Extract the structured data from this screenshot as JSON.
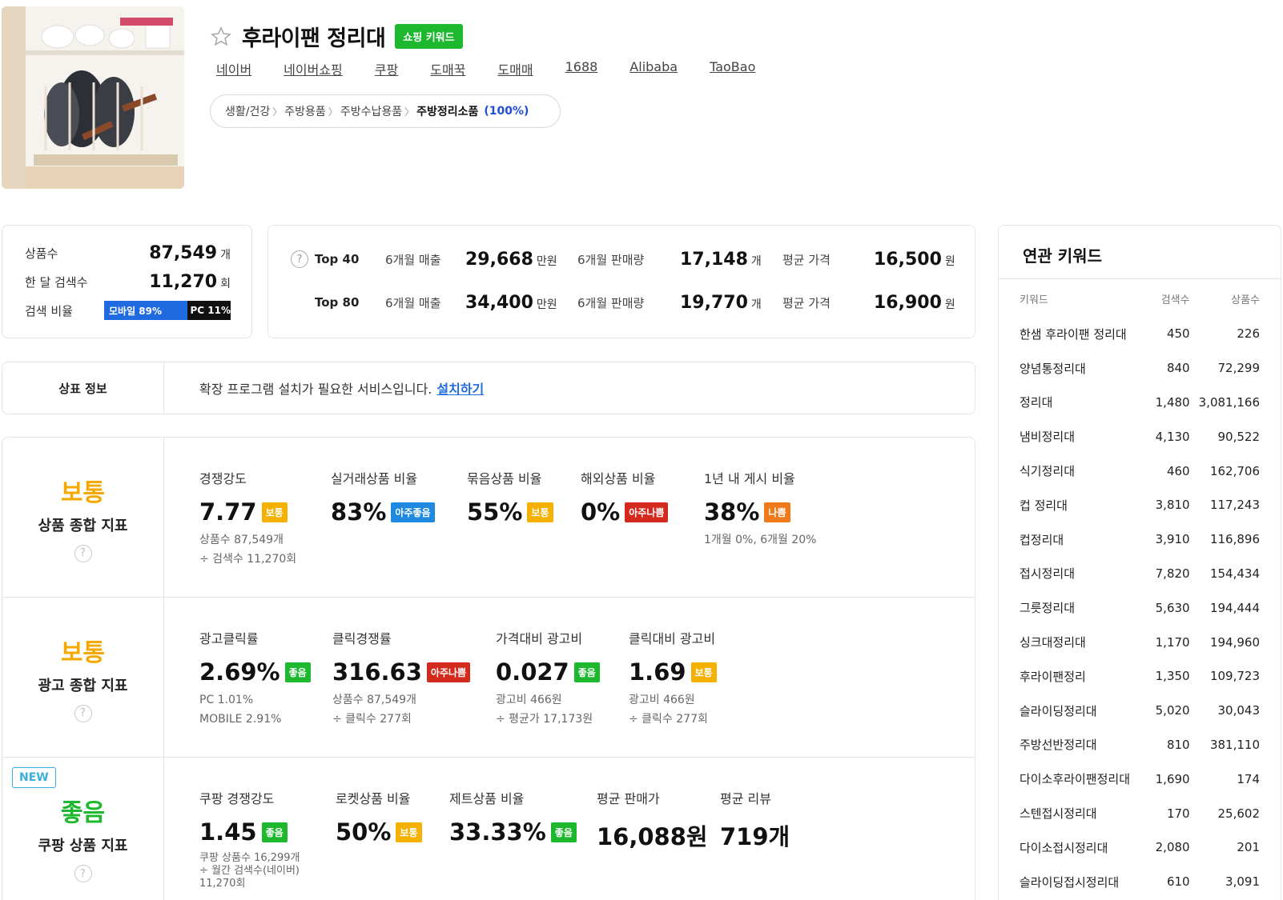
{
  "header": {
    "title": "후라이팬 정리대",
    "badge": "쇼핑 키워드",
    "links": [
      "네이버",
      "네이버쇼핑",
      "쿠팡",
      "도매꾹",
      "도매매",
      "1688",
      "Alibaba",
      "TaoBao"
    ],
    "breadcrumb": [
      "생활/건강",
      "주방용품",
      "주방수납용품",
      "주방정리소품"
    ],
    "category_percent": "(100%)"
  },
  "summary": {
    "product_count_label": "상품수",
    "product_count": "87,549",
    "product_count_unit": "개",
    "monthly_search_label": "한 달 검색수",
    "monthly_search": "11,270",
    "monthly_search_unit": "회",
    "search_ratio_label": "검색 비율",
    "mobile_label": "모바일 89%",
    "pc_label": "PC 11%",
    "mobile_fraction": 0.89
  },
  "top_stats": {
    "rows": [
      {
        "label": "Top 40",
        "sales_label": "6개월 매출",
        "sales": "29,668",
        "sales_unit": "만원",
        "qty_label": "6개월 판매량",
        "qty": "17,148",
        "qty_unit": "개",
        "price_label": "평균 가격",
        "price": "16,500",
        "price_unit": "원"
      },
      {
        "label": "Top 80",
        "sales_label": "6개월 매출",
        "sales": "34,400",
        "sales_unit": "만원",
        "qty_label": "6개월 판매량",
        "qty": "19,770",
        "qty_unit": "개",
        "price_label": "평균 가격",
        "price": "16,900",
        "price_unit": "원"
      }
    ]
  },
  "trademark": {
    "label": "상표 정보",
    "message": "확장 프로그램 설치가 필요한 서비스입니다.",
    "link": "설치하기"
  },
  "metrics": {
    "product": {
      "grade": "보통",
      "name": "상품 종합 지표",
      "items": [
        {
          "title": "경쟁강도",
          "value": "7.77",
          "tag": "보통",
          "sub1": "상품수 87,549개",
          "sub2": "÷ 검색수 11,270회"
        },
        {
          "title": "실거래상품 비율",
          "value": "83%",
          "tag": "아주좋음"
        },
        {
          "title": "묶음상품 비율",
          "value": "55%",
          "tag": "보통"
        },
        {
          "title": "해외상품 비율",
          "value": "0%",
          "tag": "아주나쁨"
        },
        {
          "title": "1년 내 게시 비율",
          "value": "38%",
          "tag": "나쁨",
          "sub1": "1개월 0%, 6개월 20%"
        }
      ]
    },
    "ad": {
      "grade": "보통",
      "name": "광고 종합 지표",
      "items": [
        {
          "title": "광고클릭률",
          "value": "2.69%",
          "tag": "좋음",
          "sub1": "PC 1.01%",
          "sub2": "MOBILE 2.91%"
        },
        {
          "title": "클릭경쟁률",
          "value": "316.63",
          "tag": "아주나쁨",
          "sub1": "상품수 87,549개",
          "sub2": "÷ 클릭수 277회"
        },
        {
          "title": "가격대비 광고비",
          "value": "0.027",
          "tag": "좋음",
          "sub1": "광고비 466원",
          "sub2": "÷ 평균가 17,173원"
        },
        {
          "title": "클릭대비 광고비",
          "value": "1.69",
          "tag": "보통",
          "sub1": "광고비 466원",
          "sub2": "÷ 클릭수 277회"
        }
      ]
    },
    "coupang": {
      "new_badge": "NEW",
      "grade": "좋음",
      "name": "쿠팡 상품 지표",
      "items": [
        {
          "title": "쿠팡 경쟁강도",
          "value": "1.45",
          "tag": "좋음",
          "sub1": "쿠팡 상품수 16,299개",
          "sub2": "÷ 월간 검색수(네이버)",
          "sub3": "11,270회"
        },
        {
          "title": "로켓상품 비율",
          "value": "50%",
          "tag": "보통"
        },
        {
          "title": "제트상품 비율",
          "value": "33.33%",
          "tag": "좋음"
        },
        {
          "title": "평균 판매가",
          "value": "16,088원"
        },
        {
          "title": "평균 리뷰",
          "value": "719개"
        }
      ]
    }
  },
  "related": {
    "title": "연관 키워드",
    "col_keyword": "키워드",
    "col_search": "검색수",
    "col_products": "상품수",
    "rows": [
      {
        "keyword": "한샘 후라이팬 정리대",
        "search": "450",
        "products": "226"
      },
      {
        "keyword": "양념통정리대",
        "search": "840",
        "products": "72,299"
      },
      {
        "keyword": "정리대",
        "search": "1,480",
        "products": "3,081,166"
      },
      {
        "keyword": "냄비정리대",
        "search": "4,130",
        "products": "90,522"
      },
      {
        "keyword": "식기정리대",
        "search": "460",
        "products": "162,706"
      },
      {
        "keyword": "컵 정리대",
        "search": "3,810",
        "products": "117,243"
      },
      {
        "keyword": "컵정리대",
        "search": "3,910",
        "products": "116,896"
      },
      {
        "keyword": "접시정리대",
        "search": "7,820",
        "products": "154,434"
      },
      {
        "keyword": "그릇정리대",
        "search": "5,630",
        "products": "194,444"
      },
      {
        "keyword": "싱크대정리대",
        "search": "1,170",
        "products": "194,960"
      },
      {
        "keyword": "후라이팬정리",
        "search": "1,350",
        "products": "109,723"
      },
      {
        "keyword": "슬라이딩정리대",
        "search": "5,020",
        "products": "30,043"
      },
      {
        "keyword": "주방선반정리대",
        "search": "810",
        "products": "381,110"
      },
      {
        "keyword": "다이소후라이팬정리대",
        "search": "1,690",
        "products": "174"
      },
      {
        "keyword": "스텐접시정리대",
        "search": "170",
        "products": "25,602"
      },
      {
        "keyword": "다이소접시정리대",
        "search": "2,080",
        "products": "201"
      },
      {
        "keyword": "슬라이딩접시정리대",
        "search": "610",
        "products": "3,091"
      }
    ]
  },
  "colors": {
    "good": "#1db82d",
    "normal": "#f5b000",
    "very_good": "#1f88e0",
    "very_bad": "#d42a1e",
    "bad": "#f07a1a",
    "link": "#1f6ae0"
  },
  "icons": [
    "star-icon",
    "help-icon",
    "product-thumbnail"
  ]
}
